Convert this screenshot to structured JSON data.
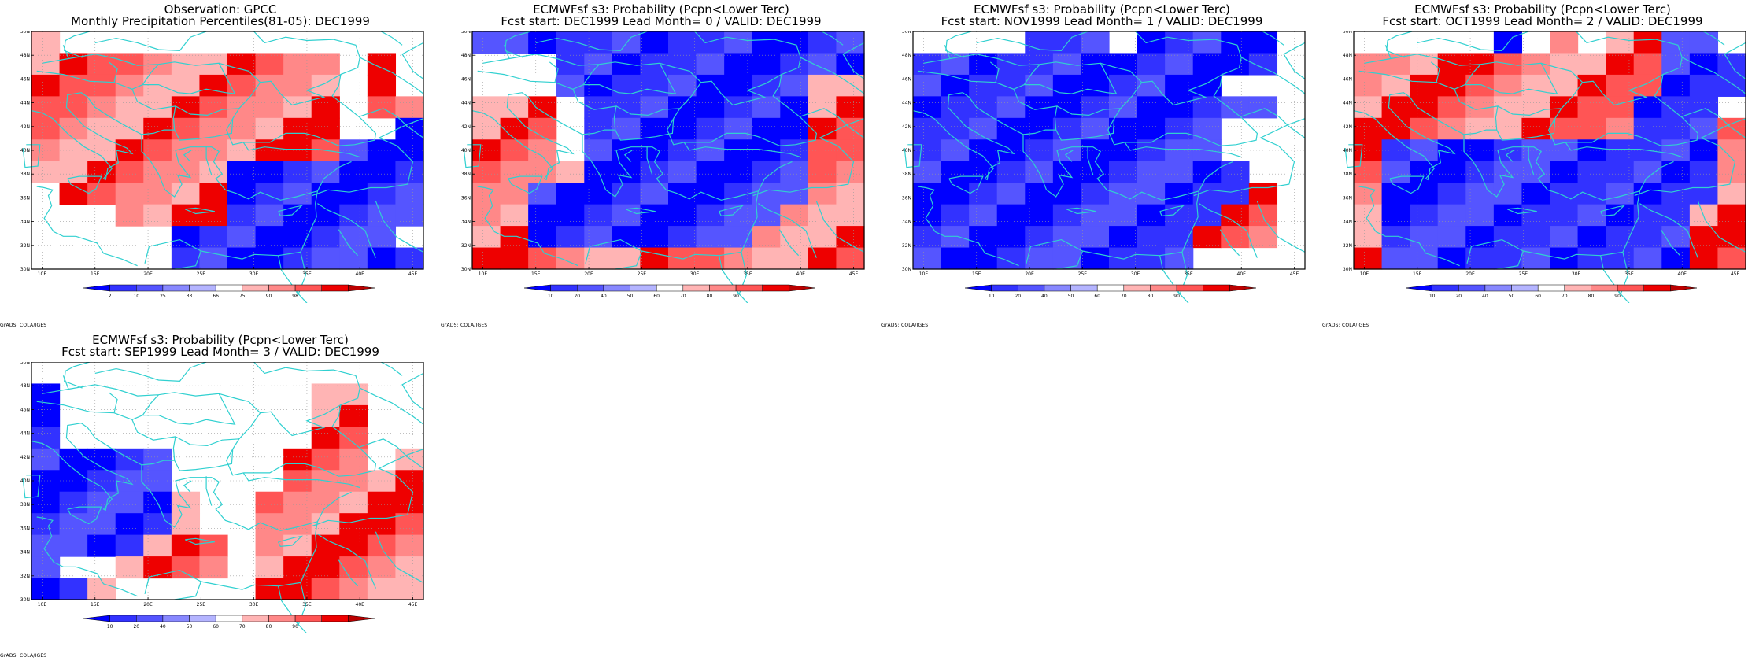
{
  "colors": {
    "blue_scale": [
      "#0000ff",
      "#3232ff",
      "#5555ff",
      "#8888ff",
      "#b4b4ff"
    ],
    "red_scale": [
      "#ffb4b4",
      "#ff8888",
      "#ff5555",
      "#ee0000",
      "#bb0000"
    ],
    "coast": "#30d0d0"
  },
  "axes": {
    "lat_labels": [
      "30N",
      "32N",
      "34N",
      "36N",
      "38N",
      "40N",
      "42N",
      "44N",
      "46N",
      "48N",
      "50N"
    ],
    "lon_labels": [
      "10E",
      "15E",
      "20E",
      "25E",
      "30E",
      "35E",
      "40E",
      "45E"
    ]
  },
  "grads_label": "GrADS: COLA/IGES",
  "panels": [
    {
      "title1": "Observation: GPCC",
      "title2": "Monthly Precipitation Percentiles(81-05): DEC1999",
      "legend_labels": [
        "2",
        "10",
        "25",
        "33",
        "66",
        "75",
        "90",
        "98"
      ],
      "grid": [
        "R0000000000000",
        "RRRRRRRRRRR0R0",
        "RRRRRRRRRRR0R0",
        "RRRRRRRRRRR0RR",
        "RRRRRRRRRRR00B",
        "RRRRRRRRRRRBBB",
        "RRRRRRRBBBBBBB",
        "0RRRRRRBBBBBBB",
        "000RRRRBBBBBBB",
        "00000BBBBBBBB0",
        "00000BBBBBBBBB"
      ]
    },
    {
      "title1": "ECMWFsf s3: Probability (Pcpn<Lower Terc)",
      "title2": "Fcst start: DEC1999   Lead Month= 0 / VALID: DEC1999",
      "legend_labels": [
        "10",
        "20",
        "40",
        "50",
        "60",
        "70",
        "80",
        "90"
      ],
      "grid": [
        "BBBBBBBBBBBBBB",
        "000BBBBBBBBBBB",
        "000BBBBBBBBBRR",
        "RRR0BBBBBBBBRR",
        "RRR0BBBBBBBBRR",
        "RRR0BBBBBBBBRR",
        "RRRRBBBBBBBBRR",
        "RRBBBBBBBBBBRR",
        "RRBBBBBBBBBRRR",
        "RRBBBBBBBBRRRR",
        "RRRRRRRRRRRRRR"
      ]
    },
    {
      "title1": "ECMWFsf s3: Probability (Pcpn<Lower Terc)",
      "title2": "Fcst start: NOV1999   Lead Month= 1 / VALID: DEC1999",
      "legend_labels": [
        "10",
        "20",
        "40",
        "50",
        "60",
        "70",
        "80",
        "90"
      ],
      "grid": [
        "0000BBB0BBBBB0",
        "BBBBBBBBBBBBB0",
        "BBBBBBBBBBB000",
        "BBBBBBBBBBBBB0",
        "BBBBBBBBBBB000",
        "BBBBBBBBBBB000",
        "BBBBBBBBBBBB00",
        "BBBBBBBBBBBBR0",
        "BBBBBBBBBBBRR0",
        "BBBBBBBBBBRRR0",
        "BBBBBBBBBB0000"
      ]
    },
    {
      "title1": "ECMWFsf s3: Probability (Pcpn<Lower Terc)",
      "title2": "Fcst start: OCT1999   Lead Month= 2 / VALID: DEC1999",
      "legend_labels": [
        "10",
        "20",
        "40",
        "50",
        "60",
        "70",
        "80",
        "90"
      ],
      "grid": [
        "00000B0R0RRBB0",
        "RRRRRRRRRRRBBB",
        "RRRRRRRRRRRBBB",
        "RRRRRRRRRRBBB0",
        "RRRRRRRRRRBBBR",
        "RBBBBBBBBBBBBR",
        "RBBBBBBBBBBBBR",
        "RBBBBBBBBBBBBR",
        "RBBBBBBBBBBBRR",
        "RBBBBBBBBBBBRR",
        "RBBBBBBBBBBBRR"
      ]
    },
    {
      "title1": "ECMWFsf s3: Probability (Pcpn<Lower Terc)",
      "title2": "Fcst start: SEP1999   Lead Month= 3 / VALID: DEC1999",
      "legend_labels": [
        "10",
        "20",
        "40",
        "50",
        "60",
        "70",
        "80",
        "90"
      ],
      "grid": [
        "00000000000000",
        "B000000000RR00",
        "B000000000RR00",
        "B000000000RR00",
        "BBBBB0000RRR0R",
        "BBBBB0000RRRRR",
        "BBBBBR00RRRRRR",
        "BBBBBR00RRRRRR",
        "BBBBRRR0RRRRRR",
        "B00RRRR0RRRRRR",
        "BBR00000RRRRRR"
      ]
    }
  ]
}
